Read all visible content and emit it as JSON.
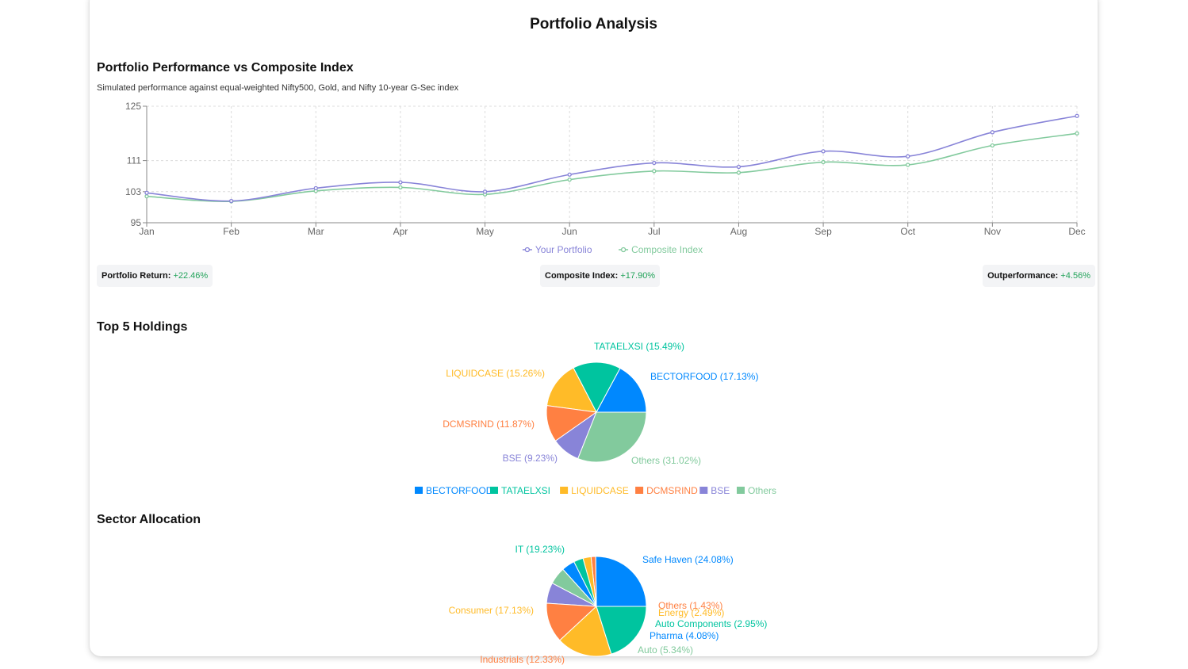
{
  "page": {
    "title": "Portfolio Analysis"
  },
  "performance": {
    "title": "Portfolio Performance vs Composite Index",
    "subtitle": "Simulated performance against equal-weighted Nifty500, Gold, and Nifty 10-year G-Sec index",
    "stats": {
      "portfolio_return_label": "Portfolio Return:",
      "portfolio_return_value": "+22.46%",
      "composite_label": "Composite Index:",
      "composite_value": "+17.90%",
      "outperformance_label": "Outperformance:",
      "outperformance_value": "+4.56%"
    }
  },
  "holdings": {
    "title": "Top 5 Holdings"
  },
  "sectors": {
    "title": "Sector Allocation"
  },
  "chart_data": [
    {
      "type": "line",
      "x": [
        "Jan",
        "Feb",
        "Mar",
        "Apr",
        "May",
        "Jun",
        "Jul",
        "Aug",
        "Sep",
        "Oct",
        "Nov",
        "Dec"
      ],
      "yticks": [
        95,
        103,
        111,
        125
      ],
      "ylim": [
        95,
        125
      ],
      "grid": true,
      "legend_position": "bottom",
      "series": [
        {
          "name": "Your Portfolio",
          "color": "#8884d8",
          "values": [
            102.7,
            100.6,
            103.9,
            105.4,
            103.0,
            107.4,
            110.4,
            109.4,
            113.4,
            112.1,
            118.3,
            122.5
          ]
        },
        {
          "name": "Composite Index",
          "color": "#82ca9d",
          "values": [
            101.8,
            100.5,
            103.2,
            104.1,
            102.3,
            106.1,
            108.3,
            107.9,
            110.6,
            109.9,
            114.9,
            118.0
          ]
        }
      ]
    },
    {
      "type": "pie",
      "legend_position": "bottom",
      "slices": [
        {
          "name": "BECTORFOOD",
          "value": 17.13,
          "label": "BECTORFOOD (17.13%)",
          "color": "#0088FE"
        },
        {
          "name": "TATAELXSI",
          "value": 15.49,
          "label": "TATAELXSI (15.49%)",
          "color": "#00C49F"
        },
        {
          "name": "LIQUIDCASE",
          "value": 15.26,
          "label": "LIQUIDCASE (15.26%)",
          "color": "#FFBB28"
        },
        {
          "name": "DCMSRIND",
          "value": 11.87,
          "label": "DCMSRIND (11.87%)",
          "color": "#FF8042"
        },
        {
          "name": "BSE",
          "value": 9.23,
          "label": "BSE (9.23%)",
          "color": "#8884d8"
        },
        {
          "name": "Others",
          "value": 31.02,
          "label": "Others (31.02%)",
          "color": "#82ca9d"
        }
      ]
    },
    {
      "type": "pie",
      "slices": [
        {
          "name": "Safe Haven",
          "value": 24.08,
          "label": "Safe Haven (24.08%)",
          "color": "#0088FE"
        },
        {
          "name": "Others",
          "value": 1.43,
          "label": "Others (1.43%)",
          "color": "#FF8042"
        },
        {
          "name": "Energy",
          "value": 2.49,
          "label": "Energy (2.49%)",
          "color": "#FFBB28"
        },
        {
          "name": "Auto Components",
          "value": 2.95,
          "label": "Auto Components (2.95%)",
          "color": "#00C49F"
        },
        {
          "name": "Pharma",
          "value": 4.08,
          "label": "Pharma (4.08%)",
          "color": "#0088FE"
        },
        {
          "name": "Auto",
          "value": 5.34,
          "label": "Auto (5.34%)",
          "color": "#82ca9d"
        },
        {
          "name": "Unlabeled",
          "value": 6.4,
          "label": "",
          "color": "#8884d8"
        },
        {
          "name": "Industrials",
          "value": 12.33,
          "label": "Industrials (12.33%)",
          "color": "#FF8042"
        },
        {
          "name": "Consumer",
          "value": 17.13,
          "label": "Consumer (17.13%)",
          "color": "#FFBB28"
        },
        {
          "name": "IT",
          "value": 19.23,
          "label": "IT (19.23%)",
          "color": "#00C49F"
        }
      ]
    }
  ]
}
